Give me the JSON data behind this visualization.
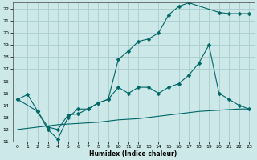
{
  "xlabel": "Humidex (Indice chaleur)",
  "xlim": [
    -0.5,
    23.5
  ],
  "ylim": [
    11,
    22.5
  ],
  "xticks": [
    0,
    1,
    2,
    3,
    4,
    5,
    6,
    7,
    8,
    9,
    10,
    11,
    12,
    13,
    14,
    15,
    16,
    17,
    18,
    19,
    20,
    21,
    22,
    23
  ],
  "yticks": [
    11,
    12,
    13,
    14,
    15,
    16,
    17,
    18,
    19,
    20,
    21,
    22
  ],
  "bg_color": "#cce8e8",
  "grid_color": "#aacccc",
  "line_color": "#006666",
  "lines": [
    {
      "x": [
        0,
        1,
        2,
        3,
        4,
        5,
        6,
        7,
        8,
        9,
        10,
        11,
        12,
        13,
        14,
        15,
        16,
        17,
        20,
        21,
        22,
        23
      ],
      "y": [
        14.5,
        14.9,
        13.5,
        12.0,
        11.2,
        13.0,
        13.7,
        13.7,
        14.2,
        14.5,
        17.8,
        18.5,
        19.3,
        19.5,
        20.0,
        21.5,
        22.2,
        22.5,
        21.7,
        21.6,
        21.6,
        21.6
      ],
      "marker": "D",
      "markersize": 2.5
    },
    {
      "x": [
        0,
        2,
        3,
        4,
        5,
        6,
        7,
        8,
        9,
        10,
        11,
        12,
        13,
        14,
        15,
        16,
        17,
        18,
        19,
        20,
        21,
        22,
        23
      ],
      "y": [
        14.5,
        13.5,
        12.2,
        12.0,
        13.2,
        13.3,
        13.7,
        14.2,
        14.5,
        15.5,
        15.0,
        15.5,
        15.5,
        15.0,
        15.5,
        15.8,
        16.5,
        17.5,
        19.0,
        15.0,
        14.5,
        14.0,
        13.7
      ],
      "marker": "D",
      "markersize": 2.5
    },
    {
      "x": [
        0,
        1,
        2,
        3,
        4,
        5,
        6,
        7,
        8,
        9,
        10,
        11,
        12,
        13,
        14,
        15,
        16,
        17,
        18,
        19,
        20,
        21,
        22,
        23
      ],
      "y": [
        12.0,
        12.1,
        12.2,
        12.3,
        12.4,
        12.45,
        12.5,
        12.55,
        12.6,
        12.7,
        12.8,
        12.85,
        12.9,
        13.0,
        13.1,
        13.2,
        13.3,
        13.4,
        13.5,
        13.55,
        13.6,
        13.65,
        13.7,
        13.7
      ],
      "marker": null,
      "markersize": 0
    }
  ]
}
